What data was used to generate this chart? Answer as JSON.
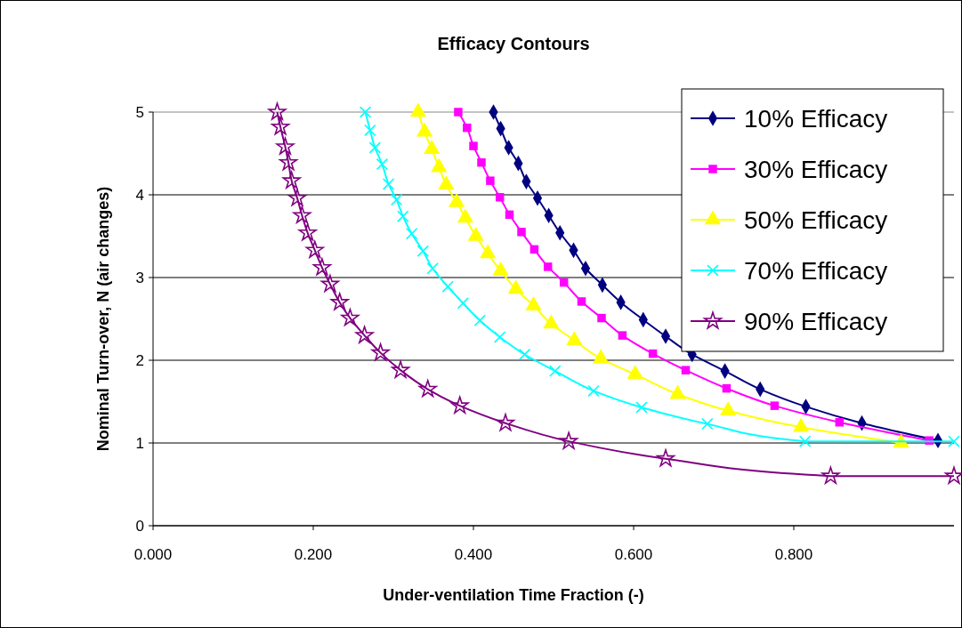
{
  "chart_data": {
    "type": "line",
    "title": "Efficacy Contours",
    "xlabel": "Under-ventilation Time Fraction (-)",
    "ylabel": "Nominal Turn-over, N (air changes)",
    "xlim": [
      0,
      1
    ],
    "xticks": [
      {
        "value": 0,
        "label": "0.000"
      },
      {
        "value": 0.2,
        "label": "0.200"
      },
      {
        "value": 0.4,
        "label": "0.400"
      },
      {
        "value": 0.6,
        "label": "0.600"
      },
      {
        "value": 0.8,
        "label": "0.800"
      }
    ],
    "ylim": [
      0,
      5
    ],
    "yticks": [
      0,
      1,
      2,
      3,
      4,
      5
    ],
    "grid": "y",
    "legend": "top right",
    "line_style": "solid",
    "series": [
      {
        "name": "10% Efficacy",
        "color": "#000080",
        "marker": "diamond",
        "x": [
          0.425,
          0.434,
          0.444,
          0.456,
          0.466,
          0.48,
          0.494,
          0.508,
          0.525,
          0.54,
          0.561,
          0.584,
          0.612,
          0.64,
          0.673,
          0.714,
          0.758,
          0.815,
          0.885,
          0.98
        ],
        "values": [
          5.0,
          4.8,
          4.57,
          4.38,
          4.16,
          3.96,
          3.75,
          3.54,
          3.33,
          3.11,
          2.91,
          2.7,
          2.49,
          2.29,
          2.07,
          1.87,
          1.65,
          1.44,
          1.24,
          1.03
        ]
      },
      {
        "name": "30% Efficacy",
        "color": "#ff00ff",
        "marker": "square",
        "x": [
          0.381,
          0.392,
          0.4,
          0.41,
          0.421,
          0.433,
          0.445,
          0.46,
          0.476,
          0.493,
          0.513,
          0.535,
          0.56,
          0.586,
          0.624,
          0.665,
          0.716,
          0.776,
          0.857,
          0.969
        ],
        "values": [
          5.0,
          4.81,
          4.59,
          4.39,
          4.17,
          3.97,
          3.76,
          3.55,
          3.34,
          3.13,
          2.94,
          2.71,
          2.51,
          2.3,
          2.08,
          1.88,
          1.66,
          1.45,
          1.25,
          1.03
        ]
      },
      {
        "name": "50% Efficacy",
        "color": "#ffff00",
        "marker": "triangle",
        "x": [
          0.331,
          0.339,
          0.348,
          0.357,
          0.366,
          0.379,
          0.39,
          0.403,
          0.418,
          0.434,
          0.453,
          0.475,
          0.497,
          0.526,
          0.559,
          0.602,
          0.655,
          0.718,
          0.809,
          0.934
        ],
        "values": [
          5.0,
          4.76,
          4.55,
          4.33,
          4.12,
          3.91,
          3.72,
          3.5,
          3.29,
          3.08,
          2.86,
          2.66,
          2.44,
          2.24,
          2.02,
          1.83,
          1.59,
          1.39,
          1.19,
          1.0
        ]
      },
      {
        "name": "70% Efficacy",
        "color": "#00ffff",
        "marker": "cross",
        "x": [
          0.265,
          0.271,
          0.277,
          0.286,
          0.294,
          0.304,
          0.312,
          0.323,
          0.337,
          0.349,
          0.368,
          0.387,
          0.408,
          0.433,
          0.464,
          0.502,
          0.55,
          0.61,
          0.692,
          0.814,
          1.0
        ],
        "values": [
          5.0,
          4.78,
          4.57,
          4.37,
          4.13,
          3.94,
          3.74,
          3.53,
          3.32,
          3.11,
          2.89,
          2.69,
          2.48,
          2.28,
          2.07,
          1.87,
          1.63,
          1.43,
          1.23,
          1.02,
          1.02
        ]
      },
      {
        "name": "90% Efficacy",
        "color": "#800080",
        "marker": "star",
        "x": [
          0.155,
          0.159,
          0.165,
          0.169,
          0.173,
          0.18,
          0.186,
          0.193,
          0.202,
          0.211,
          0.221,
          0.233,
          0.246,
          0.264,
          0.284,
          0.309,
          0.343,
          0.383,
          0.44,
          0.519,
          0.64,
          0.846,
          1.0
        ],
        "values": [
          5.0,
          4.82,
          4.58,
          4.39,
          4.17,
          3.96,
          3.75,
          3.54,
          3.33,
          3.12,
          2.92,
          2.7,
          2.51,
          2.3,
          2.09,
          1.88,
          1.65,
          1.45,
          1.24,
          1.02,
          0.81,
          0.6,
          0.6
        ]
      }
    ]
  }
}
